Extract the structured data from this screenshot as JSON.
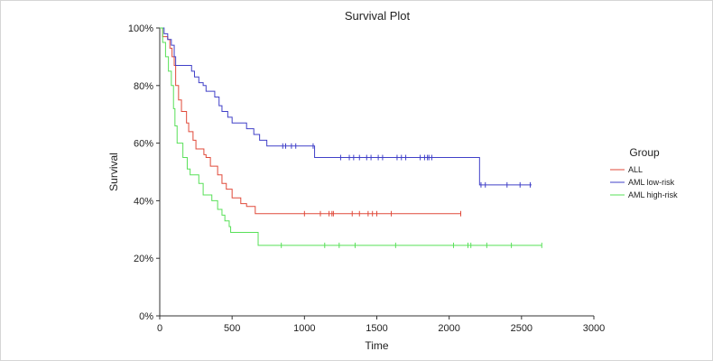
{
  "chart_data": {
    "type": "line",
    "title": "Survival Plot",
    "xlabel": "Time",
    "ylabel": "Survival",
    "xlim": [
      0,
      3000
    ],
    "ylim": [
      0,
      100
    ],
    "xticks": [
      0,
      500,
      1000,
      1500,
      2000,
      2500,
      3000
    ],
    "yticks": [
      0,
      20,
      40,
      60,
      80,
      100
    ],
    "ytick_labels": [
      "0%",
      "20%",
      "40%",
      "60%",
      "80%",
      "100%"
    ],
    "step": true,
    "grid": false,
    "legend_title": "Group",
    "legend_position": "right",
    "series": [
      {
        "name": "ALL",
        "color": "#e04a3a",
        "steps": [
          [
            0,
            100
          ],
          [
            20,
            97
          ],
          [
            55,
            96
          ],
          [
            70,
            93
          ],
          [
            85,
            90
          ],
          [
            100,
            87
          ],
          [
            110,
            80
          ],
          [
            130,
            75
          ],
          [
            150,
            71
          ],
          [
            185,
            67
          ],
          [
            200,
            64
          ],
          [
            230,
            61
          ],
          [
            250,
            58
          ],
          [
            305,
            56
          ],
          [
            320,
            55
          ],
          [
            350,
            52
          ],
          [
            400,
            49
          ],
          [
            430,
            46
          ],
          [
            460,
            44
          ],
          [
            500,
            41
          ],
          [
            560,
            39
          ],
          [
            600,
            38
          ],
          [
            660,
            35.5
          ],
          [
            2080,
            35.5
          ]
        ],
        "censored": [
          1000,
          1110,
          1170,
          1190,
          1200,
          1330,
          1380,
          1440,
          1470,
          1500,
          1600,
          2080
        ]
      },
      {
        "name": "AML low-risk",
        "color": "#4040c8",
        "steps": [
          [
            0,
            100
          ],
          [
            30,
            98
          ],
          [
            55,
            96
          ],
          [
            80,
            94
          ],
          [
            100,
            90
          ],
          [
            110,
            87
          ],
          [
            220,
            85
          ],
          [
            240,
            83
          ],
          [
            270,
            81
          ],
          [
            300,
            80
          ],
          [
            320,
            78
          ],
          [
            380,
            76
          ],
          [
            410,
            73
          ],
          [
            430,
            71
          ],
          [
            470,
            69
          ],
          [
            500,
            67
          ],
          [
            600,
            65
          ],
          [
            650,
            63
          ],
          [
            690,
            61
          ],
          [
            740,
            59
          ],
          [
            1070,
            55
          ],
          [
            2210,
            45.5
          ],
          [
            2570,
            45.5
          ]
        ],
        "censored": [
          850,
          870,
          910,
          940,
          1060,
          1250,
          1310,
          1340,
          1380,
          1430,
          1460,
          1510,
          1540,
          1640,
          1670,
          1700,
          1800,
          1830,
          1850,
          1860,
          1880,
          2220,
          2250,
          2400,
          2490,
          2560
        ]
      },
      {
        "name": "AML high-risk",
        "color": "#58e058",
        "steps": [
          [
            0,
            100
          ],
          [
            20,
            95
          ],
          [
            40,
            90
          ],
          [
            60,
            85
          ],
          [
            80,
            80
          ],
          [
            95,
            72
          ],
          [
            105,
            66
          ],
          [
            120,
            60
          ],
          [
            160,
            55
          ],
          [
            190,
            51
          ],
          [
            210,
            49
          ],
          [
            270,
            46
          ],
          [
            300,
            42
          ],
          [
            360,
            40
          ],
          [
            400,
            37
          ],
          [
            430,
            35
          ],
          [
            450,
            33
          ],
          [
            480,
            31
          ],
          [
            490,
            29
          ],
          [
            680,
            24.5
          ],
          [
            2640,
            24.5
          ]
        ],
        "censored": [
          840,
          1140,
          1240,
          1350,
          1630,
          2030,
          2130,
          2150,
          2260,
          2430,
          2640
        ]
      }
    ]
  }
}
